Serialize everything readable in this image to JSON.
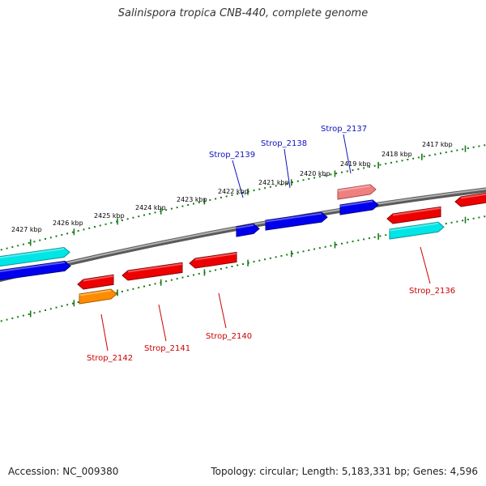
{
  "header": {
    "title": "Salinispora tropica CNB-440, complete genome"
  },
  "footer": {
    "accession": "Accession: NC_009380",
    "stats": "Topology: circular; Length: 5,183,331 bp; Genes: 4,596"
  },
  "map": {
    "backbone_color": "#7a7a7a",
    "ruler_color": "#1a7a1a",
    "kbp_labels": [
      "2427 kbp",
      "2426 kbp",
      "2425 kbp",
      "2424 kbp",
      "2423 kbp",
      "2422 kbp",
      "2421 kbp",
      "2420 kbp",
      "2419 kbp",
      "2418 kbp",
      "2417 kbp"
    ],
    "gene_labels": [
      {
        "text": "Strop_2139",
        "color": "#1010c0"
      },
      {
        "text": "Strop_2138",
        "color": "#1010c0"
      },
      {
        "text": "Strop_2137",
        "color": "#1010c0"
      },
      {
        "text": "Strop_2136",
        "color": "#cc0000"
      },
      {
        "text": "Strop_2140",
        "color": "#cc0000"
      },
      {
        "text": "Strop_2141",
        "color": "#cc0000"
      },
      {
        "text": "Strop_2142",
        "color": "#cc0000"
      }
    ]
  }
}
